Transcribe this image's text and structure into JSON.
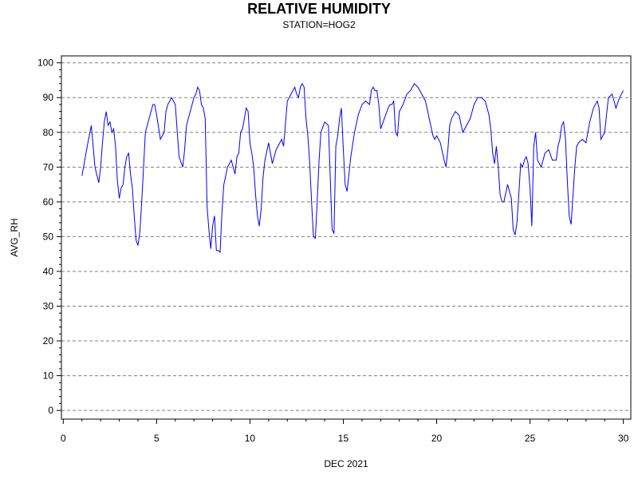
{
  "chart_data": {
    "type": "line",
    "title": "RELATIVE HUMIDITY",
    "subtitle": "STATION=HOG2",
    "xlabel": "DEC 2021",
    "ylabel": "AVG_RH",
    "xlim": [
      -0.1,
      30.4
    ],
    "ylim": [
      -2.5,
      102
    ],
    "xticks": [
      0,
      5,
      10,
      15,
      20,
      25,
      30
    ],
    "yticks": [
      0,
      10,
      20,
      30,
      40,
      50,
      60,
      70,
      80,
      90,
      100
    ],
    "grid": "horizontal dashed",
    "series_color": "#0000ff",
    "grid_color": "#808080",
    "series": [
      {
        "x": [
          1.0,
          1.3,
          1.5,
          1.7,
          1.9,
          2.0,
          2.1,
          2.2,
          2.3,
          2.4,
          2.5,
          2.6,
          2.7,
          2.8,
          2.9,
          3.0,
          3.1,
          3.2,
          3.3,
          3.4,
          3.5,
          3.6,
          3.7,
          3.8,
          3.9,
          4.0,
          4.1,
          4.2,
          4.3,
          4.4,
          4.6,
          4.8,
          4.9,
          5.0,
          5.2,
          5.4,
          5.5,
          5.6,
          5.7,
          5.8,
          5.9,
          6.0,
          6.2,
          6.4,
          6.5,
          6.6,
          6.8,
          6.9,
          7.0,
          7.1,
          7.2,
          7.3,
          7.4,
          7.5,
          7.6,
          7.7,
          7.8,
          7.9,
          8.0,
          8.1,
          8.2,
          8.3,
          8.4,
          8.5,
          8.6,
          8.8,
          9.0,
          9.2,
          9.3,
          9.4,
          9.5,
          9.6,
          9.7,
          9.8,
          9.9,
          10.0,
          10.1,
          10.2,
          10.3,
          10.4,
          10.5,
          10.6,
          10.7,
          10.8,
          11.0,
          11.2,
          11.4,
          11.6,
          11.7,
          11.8,
          12.0,
          12.2,
          12.3,
          12.4,
          12.5,
          12.6,
          12.7,
          12.8,
          12.9,
          13.0,
          13.1,
          13.2,
          13.3,
          13.4,
          13.5,
          13.6,
          13.7,
          13.8,
          14.0,
          14.2,
          14.4,
          14.5,
          14.6,
          14.7,
          14.8,
          14.9,
          15.0,
          15.1,
          15.2,
          15.4,
          15.6,
          15.8,
          16.0,
          16.2,
          16.4,
          16.5,
          16.6,
          16.7,
          16.8,
          16.9,
          17.0,
          17.2,
          17.4,
          17.5,
          17.6,
          17.7,
          17.8,
          17.9,
          18.0,
          18.2,
          18.4,
          18.6,
          18.8,
          19.0,
          19.2,
          19.4,
          19.6,
          19.8,
          19.9,
          20.0,
          20.2,
          20.4,
          20.5,
          20.6,
          20.7,
          20.8,
          21.0,
          21.2,
          21.4,
          21.6,
          21.8,
          22.0,
          22.2,
          22.4,
          22.6,
          22.8,
          22.9,
          23.0,
          23.1,
          23.2,
          23.3,
          23.4,
          23.5,
          23.6,
          23.8,
          24.0,
          24.1,
          24.2,
          24.3,
          24.4,
          24.5,
          24.6,
          24.7,
          24.8,
          24.9,
          25.0,
          25.1,
          25.2,
          25.3,
          25.4,
          25.6,
          25.8,
          26.0,
          26.2,
          26.4,
          26.5,
          26.6,
          26.7,
          26.8,
          26.9,
          27.0,
          27.1,
          27.2,
          27.4,
          27.5,
          27.6,
          27.8,
          28.0,
          28.2,
          28.4,
          28.6,
          28.7,
          28.8,
          28.9,
          29.0,
          29.2,
          29.4,
          29.6,
          29.8,
          30.0
        ],
        "y": [
          67.5,
          76.5,
          82,
          70,
          65.5,
          70,
          77,
          83,
          86,
          82,
          83,
          80,
          81,
          76,
          66,
          61,
          64,
          65,
          70,
          73,
          74,
          68,
          64,
          56,
          49,
          47.5,
          51,
          60,
          70,
          80,
          84,
          88,
          88,
          85,
          78,
          80,
          86,
          88,
          89,
          90,
          89,
          88,
          73,
          70,
          75,
          82,
          86,
          88,
          90,
          91,
          93,
          92,
          88,
          87,
          84,
          59,
          52,
          46.5,
          53,
          56,
          46,
          46,
          45.5,
          57,
          65,
          70,
          72,
          68,
          73,
          74,
          80,
          81,
          84,
          87,
          86,
          77,
          74,
          70,
          62,
          56,
          53,
          58,
          67,
          72,
          77,
          71,
          75,
          77,
          78,
          76,
          89,
          91,
          92,
          93,
          91,
          90,
          93,
          94,
          93,
          84,
          79,
          71,
          60,
          50,
          49.5,
          60,
          72,
          80,
          83,
          82,
          52,
          51,
          76,
          79,
          84,
          87,
          75,
          65,
          63,
          73,
          80,
          85,
          88,
          89,
          88,
          92,
          93,
          92,
          92,
          88,
          81,
          84,
          87,
          88,
          88,
          89,
          80,
          79,
          86,
          88,
          91,
          92,
          94,
          93,
          91,
          89,
          84,
          79,
          78,
          79,
          77,
          72,
          70,
          75,
          82,
          84,
          86,
          85,
          80,
          82,
          84,
          88,
          90,
          90,
          89,
          85,
          81,
          74,
          71,
          76,
          70,
          62,
          60,
          60,
          65,
          61,
          52,
          50.5,
          54,
          62,
          71,
          70,
          72,
          73,
          71,
          64,
          53,
          76,
          80,
          72,
          70,
          74,
          75,
          72,
          72,
          76,
          78,
          82,
          83,
          78,
          66,
          56,
          53.5,
          70,
          76,
          77,
          78,
          77,
          83,
          87,
          89,
          87,
          78,
          79,
          80,
          90,
          91,
          87,
          90,
          92
        ]
      }
    ]
  }
}
